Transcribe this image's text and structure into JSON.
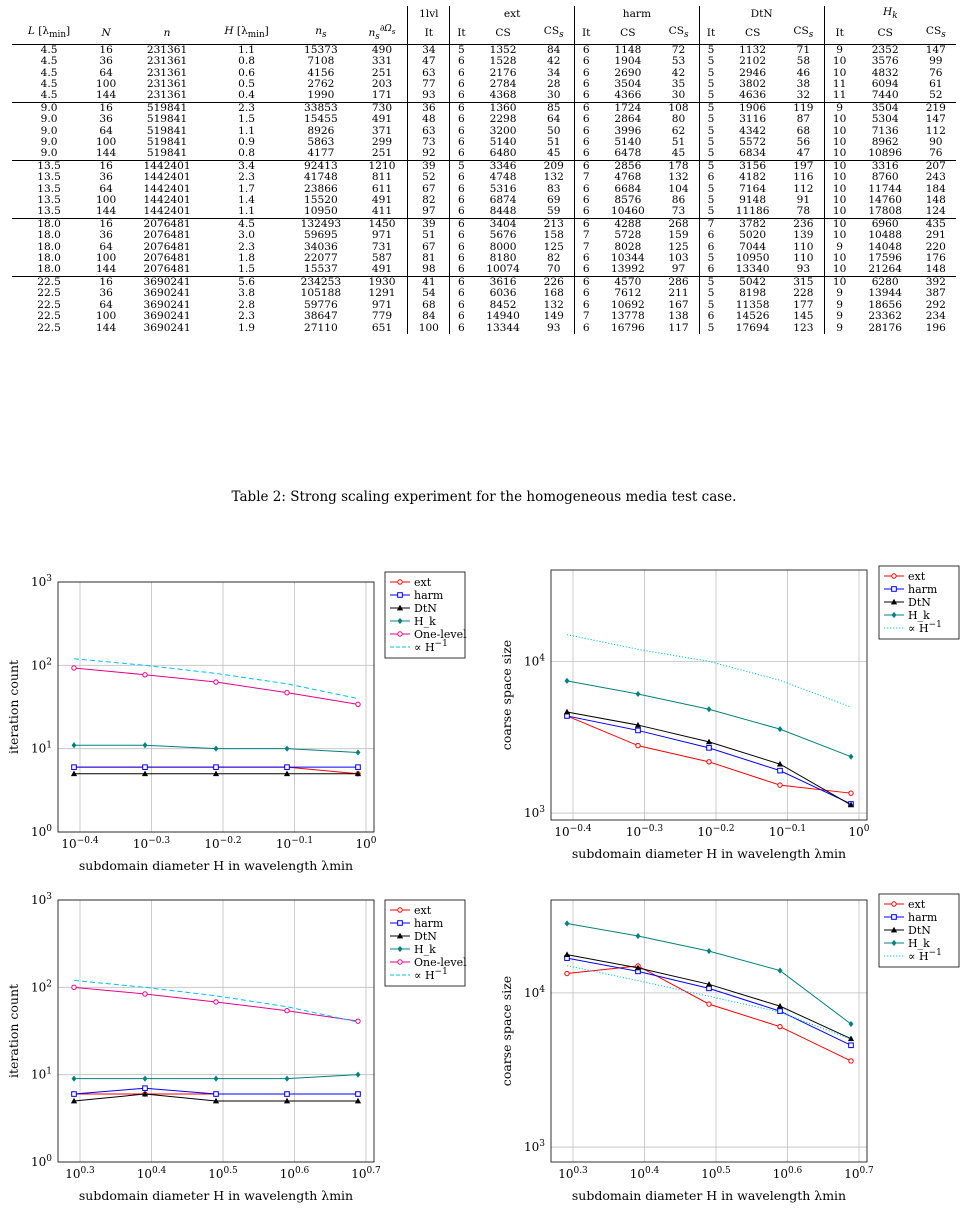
{
  "table": {
    "headers_top": [
      "",
      "",
      "",
      "",
      "",
      "",
      "1lvl",
      "ext",
      "harm",
      "DtN",
      "H_k"
    ],
    "headers_sub": [
      "L [λmin]",
      "N",
      "n",
      "H [λmin]",
      "n_s",
      "n_s^∂Ω_s",
      "It",
      "It",
      "CS",
      "CS_s",
      "It",
      "CS",
      "CS_s",
      "It",
      "CS",
      "CS_s",
      "It",
      "CS",
      "CS_s"
    ],
    "groups": [
      [
        [
          "4.5",
          "16",
          "231361",
          "1.1",
          "15373",
          "490",
          "34",
          "5",
          "1352",
          "84",
          "6",
          "1148",
          "72",
          "5",
          "1132",
          "71",
          "9",
          "2352",
          "147"
        ],
        [
          "4.5",
          "36",
          "231361",
          "0.8",
          "7108",
          "331",
          "47",
          "6",
          "1528",
          "42",
          "6",
          "1904",
          "53",
          "5",
          "2102",
          "58",
          "10",
          "3576",
          "99"
        ],
        [
          "4.5",
          "64",
          "231361",
          "0.6",
          "4156",
          "251",
          "63",
          "6",
          "2176",
          "34",
          "6",
          "2690",
          "42",
          "5",
          "2946",
          "46",
          "10",
          "4832",
          "76"
        ],
        [
          "4.5",
          "100",
          "231361",
          "0.5",
          "2762",
          "203",
          "77",
          "6",
          "2784",
          "28",
          "6",
          "3504",
          "35",
          "5",
          "3802",
          "38",
          "11",
          "6094",
          "61"
        ],
        [
          "4.5",
          "144",
          "231361",
          "0.4",
          "1990",
          "171",
          "93",
          "6",
          "4368",
          "30",
          "6",
          "4366",
          "30",
          "5",
          "4636",
          "32",
          "11",
          "7440",
          "52"
        ]
      ],
      [
        [
          "9.0",
          "16",
          "519841",
          "2.3",
          "33853",
          "730",
          "36",
          "6",
          "1360",
          "85",
          "6",
          "1724",
          "108",
          "5",
          "1906",
          "119",
          "9",
          "3504",
          "219"
        ],
        [
          "9.0",
          "36",
          "519841",
          "1.5",
          "15455",
          "491",
          "48",
          "6",
          "2298",
          "64",
          "6",
          "2864",
          "80",
          "5",
          "3116",
          "87",
          "10",
          "5304",
          "147"
        ],
        [
          "9.0",
          "64",
          "519841",
          "1.1",
          "8926",
          "371",
          "63",
          "6",
          "3200",
          "50",
          "6",
          "3996",
          "62",
          "5",
          "4342",
          "68",
          "10",
          "7136",
          "112"
        ],
        [
          "9.0",
          "100",
          "519841",
          "0.9",
          "5863",
          "299",
          "73",
          "6",
          "5140",
          "51",
          "6",
          "5140",
          "51",
          "5",
          "5572",
          "56",
          "10",
          "8962",
          "90"
        ],
        [
          "9.0",
          "144",
          "519841",
          "0.8",
          "4177",
          "251",
          "92",
          "6",
          "6480",
          "45",
          "6",
          "6478",
          "45",
          "5",
          "6834",
          "47",
          "10",
          "10896",
          "76"
        ]
      ],
      [
        [
          "13.5",
          "16",
          "1442401",
          "3.4",
          "92413",
          "1210",
          "39",
          "5",
          "3346",
          "209",
          "6",
          "2856",
          "178",
          "5",
          "3156",
          "197",
          "10",
          "3316",
          "207"
        ],
        [
          "13.5",
          "36",
          "1442401",
          "2.3",
          "41748",
          "811",
          "52",
          "6",
          "4748",
          "132",
          "7",
          "4768",
          "132",
          "6",
          "4182",
          "116",
          "10",
          "8760",
          "243"
        ],
        [
          "13.5",
          "64",
          "1442401",
          "1.7",
          "23866",
          "611",
          "67",
          "6",
          "5316",
          "83",
          "6",
          "6684",
          "104",
          "5",
          "7164",
          "112",
          "10",
          "11744",
          "184"
        ],
        [
          "13.5",
          "100",
          "1442401",
          "1.4",
          "15520",
          "491",
          "82",
          "6",
          "6874",
          "69",
          "6",
          "8576",
          "86",
          "5",
          "9148",
          "91",
          "10",
          "14760",
          "148"
        ],
        [
          "13.5",
          "144",
          "1442401",
          "1.1",
          "10950",
          "411",
          "97",
          "6",
          "8448",
          "59",
          "6",
          "10460",
          "73",
          "5",
          "11186",
          "78",
          "10",
          "17808",
          "124"
        ]
      ],
      [
        [
          "18.0",
          "16",
          "2076481",
          "4.5",
          "132493",
          "1450",
          "39",
          "6",
          "3404",
          "213",
          "6",
          "4288",
          "268",
          "7",
          "3782",
          "236",
          "10",
          "6960",
          "435"
        ],
        [
          "18.0",
          "36",
          "2076481",
          "3.0",
          "59695",
          "971",
          "51",
          "6",
          "5676",
          "158",
          "7",
          "5728",
          "159",
          "6",
          "5020",
          "139",
          "10",
          "10488",
          "291"
        ],
        [
          "18.0",
          "64",
          "2076481",
          "2.3",
          "34036",
          "731",
          "67",
          "6",
          "8000",
          "125",
          "7",
          "8028",
          "125",
          "6",
          "7044",
          "110",
          "9",
          "14048",
          "220"
        ],
        [
          "18.0",
          "100",
          "2076481",
          "1.8",
          "22077",
          "587",
          "81",
          "6",
          "8180",
          "82",
          "6",
          "10344",
          "103",
          "5",
          "10950",
          "110",
          "10",
          "17596",
          "176"
        ],
        [
          "18.0",
          "144",
          "2076481",
          "1.5",
          "15537",
          "491",
          "98",
          "6",
          "10074",
          "70",
          "6",
          "13992",
          "97",
          "6",
          "13340",
          "93",
          "10",
          "21264",
          "148"
        ]
      ],
      [
        [
          "22.5",
          "16",
          "3690241",
          "5.6",
          "234253",
          "1930",
          "41",
          "6",
          "3616",
          "226",
          "6",
          "4570",
          "286",
          "5",
          "5042",
          "315",
          "10",
          "6280",
          "392"
        ],
        [
          "22.5",
          "36",
          "3690241",
          "3.8",
          "105188",
          "1291",
          "54",
          "6",
          "6036",
          "168",
          "6",
          "7612",
          "211",
          "5",
          "8198",
          "228",
          "9",
          "13944",
          "387"
        ],
        [
          "22.5",
          "64",
          "3690241",
          "2.8",
          "59776",
          "971",
          "68",
          "6",
          "8452",
          "132",
          "6",
          "10692",
          "167",
          "5",
          "11358",
          "177",
          "9",
          "18656",
          "292"
        ],
        [
          "22.5",
          "100",
          "3690241",
          "2.3",
          "38647",
          "779",
          "84",
          "6",
          "14940",
          "149",
          "7",
          "13778",
          "138",
          "6",
          "14526",
          "145",
          "9",
          "23362",
          "234"
        ],
        [
          "22.5",
          "144",
          "3690241",
          "1.9",
          "27110",
          "651",
          "100",
          "6",
          "13344",
          "93",
          "6",
          "16796",
          "117",
          "5",
          "17694",
          "123",
          "9",
          "28176",
          "196"
        ]
      ]
    ]
  },
  "caption": "Table 2: Strong scaling experiment for the homogeneous media test case.",
  "colors": {
    "ext": "#ff0000",
    "harm": "#0000ff",
    "DtN": "#000000",
    "Hk": "#008080",
    "One-level": "#e6008c",
    "ref_dashed": "#00bfff",
    "ref_dotted": "#00bfff",
    "grid": "#bfbfbf"
  },
  "chart_data": [
    {
      "type": "line",
      "xlabel": "subdomain diameter H in wavelength λmin",
      "ylabel": "iteration count",
      "xscale": "log",
      "yscale": "log",
      "xlim": [
        -0.5,
        0.2
      ],
      "ylim": [
        1,
        1000
      ],
      "xticks": [
        -0.4,
        -0.3,
        -0.2,
        -0.1,
        1
      ],
      "xtick_labels": [
        "10^−0.4",
        "10^−0.3",
        "10^−0.2",
        "10^−0.1",
        "10^0"
      ],
      "yticks": [
        1,
        10,
        100,
        1000
      ],
      "ytick_labels": [
        "10^0",
        "10^1",
        "10^2",
        "10^3"
      ],
      "grid": true,
      "legend": "right",
      "x": [
        -0.45,
        -0.35,
        -0.25,
        -0.12,
        1.0
      ],
      "series": [
        {
          "name": "ext",
          "marker": "circle",
          "values": [
            6,
            6,
            6,
            6,
            5
          ]
        },
        {
          "name": "harm",
          "marker": "square",
          "values": [
            6,
            6,
            6,
            6,
            6
          ]
        },
        {
          "name": "DtN",
          "marker": "triangle",
          "values": [
            5,
            5,
            5,
            5,
            5
          ]
        },
        {
          "name": "H_k",
          "marker": "diamond",
          "values": [
            11,
            11,
            10,
            10,
            9
          ]
        },
        {
          "name": "One-level",
          "marker": "circle",
          "values": [
            93,
            77,
            63,
            47,
            34
          ]
        },
        {
          "name": "∝ H^−1",
          "style": "dashed",
          "values": [
            120,
            100,
            80,
            60,
            40
          ]
        }
      ]
    },
    {
      "type": "line",
      "xlabel": "subdomain diameter H in wavelength λmin",
      "ylabel": "coarse space size",
      "xscale": "log",
      "yscale": "log",
      "xlim": [
        -0.5,
        0.2
      ],
      "ylim": [
        900,
        40000
      ],
      "xticks": [
        -0.4,
        -0.3,
        -0.2,
        -0.1,
        1
      ],
      "xtick_labels": [
        "10^−0.4",
        "10^−0.3",
        "10^−0.2",
        "10^−0.1",
        "10^0"
      ],
      "yticks": [
        1000,
        10000
      ],
      "ytick_labels": [
        "10^3",
        "10^4"
      ],
      "grid": true,
      "legend": "top-right",
      "x": [
        -0.45,
        -0.35,
        -0.25,
        -0.12,
        1.0
      ],
      "series": [
        {
          "name": "ext",
          "marker": "circle",
          "values": [
            4368,
            2784,
            2176,
            1528,
            1352
          ]
        },
        {
          "name": "harm",
          "marker": "square",
          "values": [
            4366,
            3504,
            2690,
            1904,
            1148
          ]
        },
        {
          "name": "DtN",
          "marker": "triangle",
          "values": [
            4636,
            3802,
            2946,
            2102,
            1132
          ]
        },
        {
          "name": "H_k",
          "marker": "diamond",
          "values": [
            7440,
            6094,
            4832,
            3576,
            2352
          ]
        },
        {
          "name": "∝ H^−1",
          "style": "dotted",
          "values": [
            15000,
            12000,
            10000,
            7500,
            5000
          ]
        }
      ]
    },
    {
      "type": "line",
      "xlabel": "subdomain diameter H in wavelength λmin",
      "ylabel": "iteration count",
      "xscale": "log",
      "yscale": "log",
      "xlim": [
        0.22,
        0.82
      ],
      "ylim": [
        1,
        1000
      ],
      "xticks": [
        0.3,
        0.4,
        0.5,
        0.6,
        0.7
      ],
      "xtick_labels": [
        "10^0.3",
        "10^0.4",
        "10^0.5",
        "10^0.6",
        "10^0.7"
      ],
      "yticks": [
        1,
        10,
        100,
        1000
      ],
      "ytick_labels": [
        "10^0",
        "10^1",
        "10^2",
        "10^3"
      ],
      "grid": true,
      "legend": "right",
      "x": [
        0.27,
        0.35,
        0.44,
        0.57,
        0.75
      ],
      "series": [
        {
          "name": "ext",
          "marker": "circle",
          "values": [
            6,
            6,
            6,
            6,
            6
          ]
        },
        {
          "name": "harm",
          "marker": "square",
          "values": [
            6,
            7,
            6,
            6,
            6
          ]
        },
        {
          "name": "DtN",
          "marker": "triangle",
          "values": [
            5,
            6,
            5,
            5,
            5
          ]
        },
        {
          "name": "H_k",
          "marker": "diamond",
          "values": [
            9,
            9,
            9,
            9,
            10
          ]
        },
        {
          "name": "One-level",
          "marker": "circle",
          "values": [
            100,
            84,
            68,
            54,
            41
          ]
        },
        {
          "name": "∝ H^−1",
          "style": "dashed",
          "values": [
            120,
            100,
            80,
            60,
            40
          ]
        }
      ]
    },
    {
      "type": "line",
      "xlabel": "subdomain diameter H in wavelength λmin",
      "ylabel": "coarse space size",
      "xscale": "log",
      "yscale": "log",
      "xlim": [
        0.22,
        0.82
      ],
      "ylim": [
        800,
        40000
      ],
      "xticks": [
        0.3,
        0.4,
        0.5,
        0.6,
        0.7
      ],
      "xtick_labels": [
        "10^0.3",
        "10^0.4",
        "10^0.5",
        "10^0.6",
        "10^0.7"
      ],
      "yticks": [
        1000,
        10000
      ],
      "ytick_labels": [
        "10^3",
        "10^4"
      ],
      "grid": true,
      "legend": "top-right",
      "x": [
        0.27,
        0.35,
        0.44,
        0.57,
        0.75
      ],
      "series": [
        {
          "name": "ext",
          "marker": "circle",
          "values": [
            13344,
            14940,
            8452,
            6036,
            3616
          ]
        },
        {
          "name": "harm",
          "marker": "square",
          "values": [
            16796,
            13778,
            10692,
            7612,
            4570
          ]
        },
        {
          "name": "DtN",
          "marker": "triangle",
          "values": [
            17694,
            14526,
            11358,
            8198,
            5042
          ]
        },
        {
          "name": "H_k",
          "marker": "diamond",
          "values": [
            28176,
            23362,
            18656,
            13944,
            6280
          ]
        },
        {
          "name": "∝ H^−1",
          "style": "dotted",
          "values": [
            15000,
            12000,
            9500,
            7500,
            5000
          ]
        }
      ]
    }
  ]
}
